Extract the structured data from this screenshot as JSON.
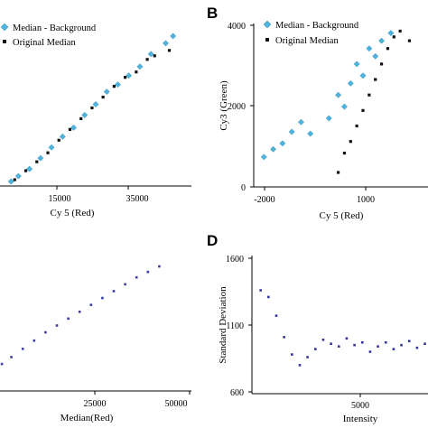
{
  "figure": {
    "colors": {
      "background_series": "#4fb3dd",
      "original_series": "#111111",
      "panel_c_points": "#3b3ea8",
      "panel_d_points": "#34369e",
      "axis": "#000000"
    }
  },
  "chart_data": [
    {
      "panel": "A",
      "type": "scatter",
      "xlabel": "Cy 5 (Red)",
      "ylabel": "",
      "xticks": [
        "15000",
        "35000"
      ],
      "xtick_values": [
        15000,
        35000
      ],
      "yticks": [],
      "xlim": [
        -5000,
        47000
      ],
      "ylim": [
        0,
        44000
      ],
      "legend": {
        "placement": "top-left"
      },
      "series": [
        {
          "name": "Median - Background",
          "marker": "diamond",
          "color": "#4fb3dd",
          "points": [
            [
              -2000,
              1000
            ],
            [
              0,
              2500
            ],
            [
              3000,
              4500
            ],
            [
              6000,
              7500
            ],
            [
              9000,
              10500
            ],
            [
              12000,
              13500
            ],
            [
              15000,
              16000
            ],
            [
              18000,
              19500
            ],
            [
              21000,
              22500
            ],
            [
              24000,
              26000
            ],
            [
              27000,
              28000
            ],
            [
              30000,
              30500
            ],
            [
              33000,
              33000
            ],
            [
              36000,
              36500
            ],
            [
              40000,
              39500
            ],
            [
              42000,
              41500
            ]
          ]
        },
        {
          "name": "Original Median",
          "marker": "square",
          "color": "#111111",
          "points": [
            [
              -1000,
              1500
            ],
            [
              2000,
              4000
            ],
            [
              5000,
              6500
            ],
            [
              8000,
              9000
            ],
            [
              11000,
              12500
            ],
            [
              14000,
              15500
            ],
            [
              17000,
              18500
            ],
            [
              20000,
              21500
            ],
            [
              23000,
              24500
            ],
            [
              26000,
              27500
            ],
            [
              29000,
              30000
            ],
            [
              32000,
              31500
            ],
            [
              35000,
              35000
            ],
            [
              37000,
              36000
            ],
            [
              41000,
              37500
            ]
          ]
        }
      ]
    },
    {
      "panel": "B",
      "type": "scatter",
      "xlabel": "Cy 5 (Red)",
      "ylabel": "Cy3 (Green)",
      "xticks": [
        "-2000",
        "1000"
      ],
      "xtick_values": [
        -2000,
        1000
      ],
      "yticks": [
        "0",
        "2000",
        "4000"
      ],
      "ytick_values": [
        0,
        2000,
        4000
      ],
      "xlim": [
        -2200,
        3400
      ],
      "ylim": [
        -50,
        4100
      ],
      "legend": {
        "placement": "top-left"
      },
      "series": [
        {
          "name": "Median - Background",
          "marker": "diamond",
          "color": "#4fb3dd",
          "points": [
            [
              -1900,
              700
            ],
            [
              -1600,
              900
            ],
            [
              -1300,
              1050
            ],
            [
              -1000,
              1350
            ],
            [
              -700,
              1600
            ],
            [
              -400,
              1300
            ],
            [
              200,
              1700
            ],
            [
              500,
              2300
            ],
            [
              700,
              2000
            ],
            [
              900,
              2600
            ],
            [
              1100,
              3100
            ],
            [
              1300,
              2800
            ],
            [
              1500,
              3500
            ],
            [
              1700,
              3300
            ],
            [
              1900,
              3700
            ],
            [
              2200,
              3900
            ]
          ]
        },
        {
          "name": "Original Median",
          "marker": "square",
          "color": "#111111",
          "points": [
            [
              500,
              300
            ],
            [
              700,
              800
            ],
            [
              900,
              1100
            ],
            [
              1100,
              1500
            ],
            [
              1300,
              1900
            ],
            [
              1500,
              2300
            ],
            [
              1700,
              2700
            ],
            [
              1900,
              3100
            ],
            [
              2100,
              3500
            ],
            [
              2300,
              3800
            ],
            [
              2500,
              3950
            ],
            [
              2800,
              3700
            ]
          ]
        }
      ]
    },
    {
      "panel": "C",
      "type": "scatter",
      "xlabel": "Median(Red)",
      "ylabel": "",
      "xticks": [
        "25000",
        "50000"
      ],
      "xtick_values": [
        25000,
        50000
      ],
      "yticks": [],
      "xlim": [
        0,
        50000
      ],
      "ylim": [
        0,
        46000
      ],
      "legend": {
        "placement": "none"
      },
      "series": [
        {
          "name": "",
          "marker": "square",
          "color": "#3b3ea8",
          "points": [
            [
              500,
              9500
            ],
            [
              3000,
              12000
            ],
            [
              6000,
              15000
            ],
            [
              9000,
              18000
            ],
            [
              12000,
              21000
            ],
            [
              15000,
              23500
            ],
            [
              18000,
              26000
            ],
            [
              21000,
              28500
            ],
            [
              24000,
              31000
            ],
            [
              27000,
              33500
            ],
            [
              30000,
              36000
            ],
            [
              33000,
              38500
            ],
            [
              36000,
              41000
            ],
            [
              39000,
              43000
            ],
            [
              42000,
              45000
            ]
          ]
        }
      ]
    },
    {
      "panel": "D",
      "type": "scatter",
      "xlabel": "Intensity",
      "ylabel": "Standard Deviation",
      "xticks": [
        "5000"
      ],
      "xtick_values": [
        5000
      ],
      "yticks": [
        "600",
        "1100",
        "1600"
      ],
      "ytick_values": [
        600,
        1100,
        1600
      ],
      "xlim": [
        0,
        11200
      ],
      "ylim": [
        600,
        1600
      ],
      "legend": {
        "placement": "none"
      },
      "series": [
        {
          "name": "",
          "marker": "square",
          "color": "#34369e",
          "points": [
            [
              500,
              1360
            ],
            [
              1000,
              1310
            ],
            [
              1500,
              1170
            ],
            [
              2000,
              1010
            ],
            [
              2500,
              880
            ],
            [
              3000,
              800
            ],
            [
              3500,
              860
            ],
            [
              4000,
              920
            ],
            [
              4500,
              990
            ],
            [
              5000,
              960
            ],
            [
              5500,
              940
            ],
            [
              6000,
              1000
            ],
            [
              6500,
              950
            ],
            [
              7000,
              970
            ],
            [
              7500,
              900
            ],
            [
              8000,
              940
            ],
            [
              8500,
              970
            ],
            [
              9000,
              920
            ],
            [
              9500,
              950
            ],
            [
              10000,
              980
            ],
            [
              10500,
              930
            ],
            [
              11000,
              960
            ]
          ]
        }
      ]
    }
  ],
  "legends": {
    "a": {
      "background": "Median - Background",
      "original": "Original Median"
    },
    "b": {
      "background": "Median - Background",
      "original": "Original Median"
    }
  },
  "panels": {
    "b_letter": "B",
    "d_letter": "D",
    "a_xticks": [
      "15000",
      "35000"
    ],
    "a_xlabel": "Cy 5 (Red)",
    "b_xticks": [
      "-2000",
      "1000"
    ],
    "b_yticks": [
      "0",
      "2000",
      "4000"
    ],
    "b_xlabel": "Cy 5 (Red)",
    "b_ylabel": "Cy3 (Green)",
    "c_xticks": [
      "25000",
      "50000"
    ],
    "c_xlabel": "Median(Red)",
    "d_xticks": [
      "5000"
    ],
    "d_yticks": [
      "600",
      "1100",
      "1600"
    ],
    "d_xlabel": "Intensity",
    "d_ylabel": "Standard Deviation"
  }
}
